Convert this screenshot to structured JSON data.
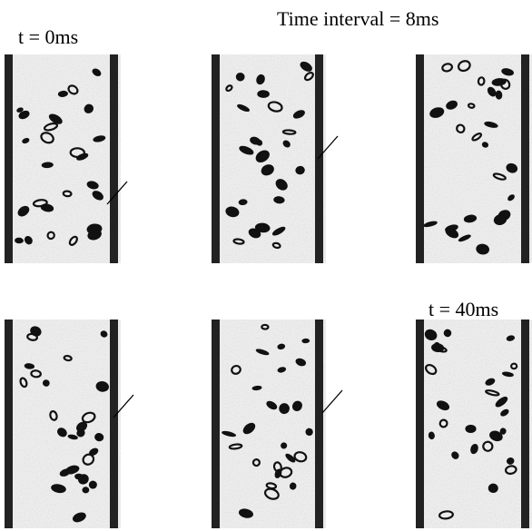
{
  "labels": {
    "start": "t = 0ms",
    "interval": "Time interval = 8ms",
    "end": "t = 40ms"
  }
}
